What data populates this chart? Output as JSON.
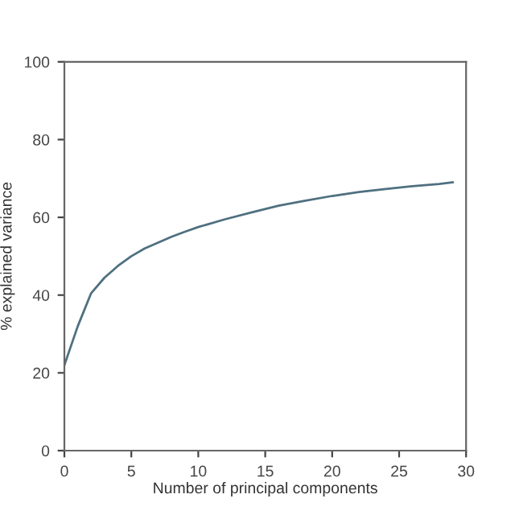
{
  "chart_data": {
    "type": "line",
    "xlabel": "Number of principal components",
    "ylabel": "% explained variance",
    "x": [
      0,
      1,
      2,
      3,
      4,
      5,
      6,
      7,
      8,
      9,
      10,
      12,
      14,
      16,
      18,
      20,
      22,
      24,
      26,
      28,
      29
    ],
    "series": [
      {
        "color": "#4f7080",
        "values": [
          22,
          32,
          40.5,
          44.5,
          47.5,
          50,
          52,
          53.5,
          55,
          56.3,
          57.5,
          59.5,
          61.3,
          63,
          64.3,
          65.5,
          66.5,
          67.3,
          68,
          68.6,
          69
        ]
      }
    ],
    "xlim": [
      0,
      30
    ],
    "ylim": [
      0,
      100
    ],
    "xticks": [
      0,
      5,
      10,
      15,
      20,
      25,
      30
    ],
    "yticks": [
      0,
      20,
      40,
      60,
      80,
      100
    ],
    "grid": false,
    "legend": false,
    "marker": "none",
    "line_style": "solid"
  }
}
